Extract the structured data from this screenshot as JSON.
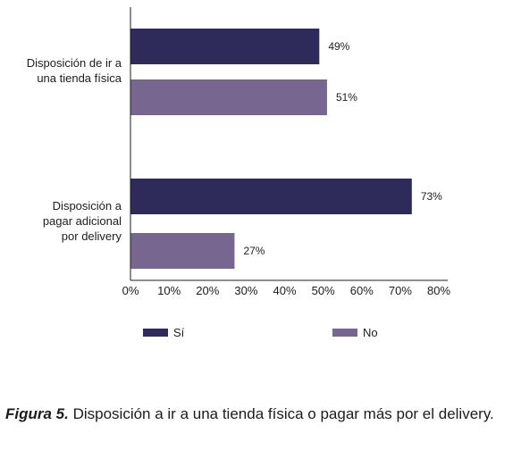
{
  "chart_data": {
    "type": "bar",
    "orientation": "horizontal",
    "categories": [
      "Disposición de ir a\nuna tienda física",
      "Disposición a\npagar adicional\npor delivery"
    ],
    "series": [
      {
        "name": "Sí",
        "values": [
          49,
          73
        ],
        "color": "#2e2a5a"
      },
      {
        "name": "No",
        "values": [
          51,
          27
        ],
        "color": "#776790"
      }
    ],
    "data_labels": [
      [
        "49%",
        "73%"
      ],
      [
        "51%",
        "27%"
      ]
    ],
    "x_ticks": [
      "0%",
      "10%",
      "20%",
      "30%",
      "40%",
      "50%",
      "60%",
      "70%",
      "80%"
    ],
    "xlim": [
      0,
      80
    ],
    "legend_position": "bottom",
    "grid": false
  },
  "caption": {
    "prefix": "Figura 5.",
    "text": " Disposición a ir a una tienda física o pagar más por el delivery."
  }
}
